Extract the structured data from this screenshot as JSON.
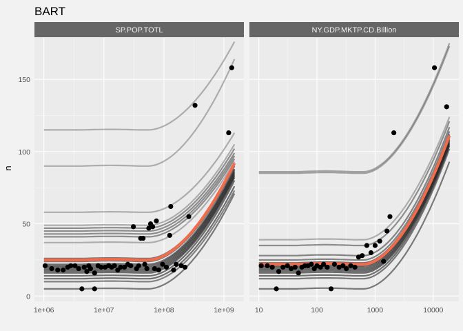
{
  "chart_data": {
    "type": "line",
    "title": "BART",
    "xlabel": "",
    "ylabel": "n",
    "ylim": [
      0,
      175
    ],
    "yticks": [
      0,
      50,
      100,
      150
    ],
    "grid": true,
    "legend": "none",
    "colors": {
      "background": "#f2f2f2",
      "panel": "#ebebeb",
      "grid_major": "#ffffff",
      "strip": "#666666",
      "gray_lines": "#1a1a1a",
      "highlight": "#f26b4a",
      "points": "#000000"
    },
    "facets": [
      {
        "name": "SP.POP.TOTL",
        "xscale": "log10",
        "xlim": [
          1000000,
          1500000000
        ],
        "xtick_values": [
          1000000,
          10000000,
          100000000,
          1000000000
        ],
        "xtick_labels": [
          "1e+06",
          "1e+07",
          "1e+08",
          "1e+09"
        ],
        "curves": [
          {
            "base": 115,
            "top": 176,
            "width": 2.2,
            "alpha": 0.3
          },
          {
            "base": 90,
            "top": 164,
            "width": 2.2,
            "alpha": 0.3
          },
          {
            "base": 58,
            "top": 113,
            "width": 2.2,
            "alpha": 0.3
          },
          {
            "base": 49,
            "top": 105,
            "width": 2.2,
            "alpha": 0.3
          },
          {
            "base": 47,
            "top": 102,
            "width": 2.2,
            "alpha": 0.45
          },
          {
            "base": 45,
            "top": 99,
            "width": 2.2,
            "alpha": 0.45
          },
          {
            "base": 43,
            "top": 97,
            "width": 2.2,
            "alpha": 0.45
          },
          {
            "base": 41,
            "top": 95,
            "width": 2.2,
            "alpha": 0.45
          },
          {
            "base": 37,
            "top": 93,
            "width": 2.2,
            "alpha": 0.3
          },
          {
            "base": 26,
            "top": 91,
            "width": 2.2,
            "alpha": 0.55
          },
          {
            "base": 24,
            "top": 90,
            "width": 2.2,
            "alpha": 0.55
          },
          {
            "base": 22,
            "top": 88,
            "width": 2.2,
            "alpha": 0.6
          },
          {
            "base": 21,
            "top": 87,
            "width": 2.2,
            "alpha": 0.6
          },
          {
            "base": 20,
            "top": 86,
            "width": 2.2,
            "alpha": 0.6
          },
          {
            "base": 19,
            "top": 85,
            "width": 2.2,
            "alpha": 0.6
          },
          {
            "base": 18,
            "top": 84,
            "width": 2.2,
            "alpha": 0.6
          },
          {
            "base": 17,
            "top": 83,
            "width": 2.2,
            "alpha": 0.6
          },
          {
            "base": 16,
            "top": 82,
            "width": 2.2,
            "alpha": 0.6
          },
          {
            "base": 14,
            "top": 80,
            "width": 2.2,
            "alpha": 0.6
          },
          {
            "base": 12,
            "top": 76,
            "width": 2.2,
            "alpha": 0.6
          },
          {
            "base": 10,
            "top": 73,
            "width": 2.2,
            "alpha": 0.5
          },
          {
            "base": 5,
            "top": 71,
            "width": 2.2,
            "alpha": 0.55
          }
        ],
        "highlight_curve": {
          "base": 25,
          "top": 92,
          "width": 4
        },
        "points": [
          [
            1050000,
            21
          ],
          [
            1350000,
            19
          ],
          [
            1700000,
            18
          ],
          [
            2100000,
            18
          ],
          [
            2500000,
            20
          ],
          [
            2800000,
            21
          ],
          [
            3300000,
            21
          ],
          [
            3800000,
            19
          ],
          [
            4300000,
            5
          ],
          [
            4700000,
            20
          ],
          [
            5200000,
            17
          ],
          [
            5600000,
            21
          ],
          [
            6000000,
            19
          ],
          [
            7000000,
            16
          ],
          [
            8000000,
            21
          ],
          [
            9000000,
            20
          ],
          [
            10500000,
            20
          ],
          [
            12000000,
            21
          ],
          [
            13500000,
            20
          ],
          [
            15000000,
            21
          ],
          [
            17000000,
            18
          ],
          [
            19000000,
            20
          ],
          [
            22000000,
            20
          ],
          [
            25000000,
            22
          ],
          [
            28000000,
            21
          ],
          [
            31000000,
            48
          ],
          [
            35000000,
            19
          ],
          [
            38000000,
            21
          ],
          [
            41000000,
            40
          ],
          [
            45000000,
            40
          ],
          [
            48000000,
            22
          ],
          [
            52000000,
            19
          ],
          [
            56000000,
            47
          ],
          [
            60000000,
            50
          ],
          [
            65000000,
            48
          ],
          [
            70000000,
            19
          ],
          [
            75000000,
            52
          ],
          [
            82000000,
            18
          ],
          [
            95000000,
            22
          ],
          [
            110000000,
            20
          ],
          [
            125000000,
            42
          ],
          [
            130000000,
            62
          ],
          [
            145000000,
            18
          ],
          [
            160000000,
            22
          ],
          [
            195000000,
            21
          ],
          [
            225000000,
            20
          ],
          [
            260000000,
            55
          ],
          [
            330000000,
            132
          ],
          [
            1200000000,
            113
          ],
          [
            1350000000,
            158
          ],
          [
            7000000,
            5
          ]
        ]
      },
      {
        "name": "NY.GDP.MKTP.CD.Billion",
        "xscale": "log10",
        "xlim": [
          10,
          19000
        ],
        "xtick_values": [
          10,
          100,
          1000,
          10000
        ],
        "xtick_labels": [
          "10",
          "100",
          "1000",
          "10000"
        ],
        "curves": [
          {
            "base": 86,
            "top": 175,
            "width": 2.2,
            "alpha": 0.35
          },
          {
            "base": 85,
            "top": 173,
            "width": 2.2,
            "alpha": 0.35
          },
          {
            "base": 39,
            "top": 124,
            "width": 2.2,
            "alpha": 0.3
          },
          {
            "base": 35,
            "top": 121,
            "width": 2.2,
            "alpha": 0.45
          },
          {
            "base": 28,
            "top": 117,
            "width": 2.2,
            "alpha": 0.5
          },
          {
            "base": 25,
            "top": 114,
            "width": 2.2,
            "alpha": 0.5
          },
          {
            "base": 23,
            "top": 112,
            "width": 2.2,
            "alpha": 0.6
          },
          {
            "base": 22,
            "top": 111,
            "width": 2.2,
            "alpha": 0.6
          },
          {
            "base": 21,
            "top": 110,
            "width": 2.2,
            "alpha": 0.6
          },
          {
            "base": 20,
            "top": 109,
            "width": 2.2,
            "alpha": 0.6
          },
          {
            "base": 19,
            "top": 108,
            "width": 2.2,
            "alpha": 0.6
          },
          {
            "base": 18,
            "top": 107,
            "width": 2.2,
            "alpha": 0.6
          },
          {
            "base": 17,
            "top": 106,
            "width": 2.2,
            "alpha": 0.6
          },
          {
            "base": 16,
            "top": 105,
            "width": 2.2,
            "alpha": 0.6
          },
          {
            "base": 14,
            "top": 104,
            "width": 2.2,
            "alpha": 0.6
          },
          {
            "base": 12,
            "top": 102,
            "width": 2.2,
            "alpha": 0.55
          },
          {
            "base": 5,
            "top": 93,
            "width": 2.2,
            "alpha": 0.55
          }
        ],
        "highlight_curve": {
          "base": 22,
          "top": 111,
          "width": 4
        },
        "points": [
          [
            11,
            21
          ],
          [
            14,
            21
          ],
          [
            17,
            20
          ],
          [
            20,
            5
          ],
          [
            22,
            17
          ],
          [
            26,
            20
          ],
          [
            31,
            21
          ],
          [
            36,
            19
          ],
          [
            42,
            20
          ],
          [
            48,
            16
          ],
          [
            55,
            20
          ],
          [
            62,
            21
          ],
          [
            70,
            21
          ],
          [
            80,
            22
          ],
          [
            90,
            19
          ],
          [
            100,
            21
          ],
          [
            115,
            20
          ],
          [
            130,
            22
          ],
          [
            150,
            20
          ],
          [
            175,
            5
          ],
          [
            200,
            22
          ],
          [
            240,
            20
          ],
          [
            280,
            21
          ],
          [
            320,
            19
          ],
          [
            380,
            21
          ],
          [
            450,
            20
          ],
          [
            520,
            27
          ],
          [
            600,
            28
          ],
          [
            720,
            35
          ],
          [
            850,
            30
          ],
          [
            1000,
            35
          ],
          [
            1200,
            38
          ],
          [
            1400,
            24
          ],
          [
            1600,
            45
          ],
          [
            1800,
            55
          ],
          [
            2100,
            113
          ],
          [
            10500,
            158
          ],
          [
            17000,
            131
          ]
        ]
      }
    ]
  }
}
